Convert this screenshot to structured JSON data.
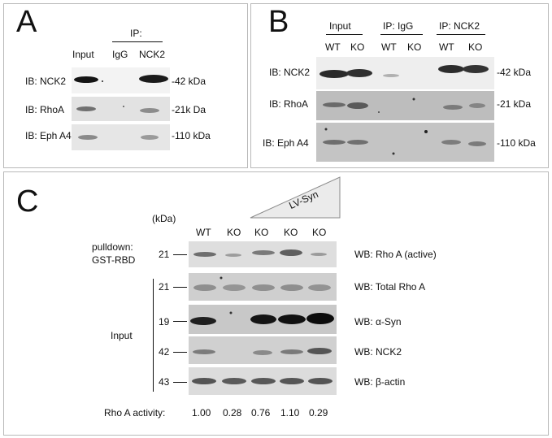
{
  "panel_a": {
    "letter": "A",
    "ip_header": "IP:",
    "lanes": [
      "Input",
      "IgG",
      "NCK2"
    ],
    "rows": [
      {
        "label": "IB: NCK2",
        "mw": "-42 kDa"
      },
      {
        "label": "IB: RhoA",
        "mw": "-21k Da"
      },
      {
        "label": "IB: Eph A4",
        "mw": "-110 kDa"
      }
    ]
  },
  "panel_b": {
    "letter": "B",
    "groups": [
      "Input",
      "IP: IgG",
      "IP: NCK2"
    ],
    "lanes": [
      "WT",
      "KO",
      "WT",
      "KO",
      "WT",
      "KO"
    ],
    "rows": [
      {
        "label": "IB: NCK2",
        "mw": "-42 kDa"
      },
      {
        "label": "IB: RhoA",
        "mw": "-21 kDa"
      },
      {
        "label": "IB: Eph A4",
        "mw": "-110 kDa"
      }
    ]
  },
  "panel_c": {
    "letter": "C",
    "kda_header": "(kDa)",
    "treatment": "LV-Syn",
    "lanes": [
      "WT",
      "KO",
      "KO",
      "KO",
      "KO"
    ],
    "pulldown_label": [
      "pulldown:",
      "GST-RBD"
    ],
    "input_label": "Input",
    "rows": [
      {
        "mw": "21",
        "wb": "WB: Rho A (active)"
      },
      {
        "mw": "21",
        "wb": "WB: Total Rho A"
      },
      {
        "mw": "19",
        "wb": "WB: α-Syn"
      },
      {
        "mw": "42",
        "wb": "WB: NCK2"
      },
      {
        "mw": "43",
        "wb": "WB: β-actin"
      }
    ],
    "activity_label": "Rho A activity:",
    "activity_values": [
      "1.00",
      "0.28",
      "0.76",
      "1.10",
      "0.29"
    ]
  }
}
